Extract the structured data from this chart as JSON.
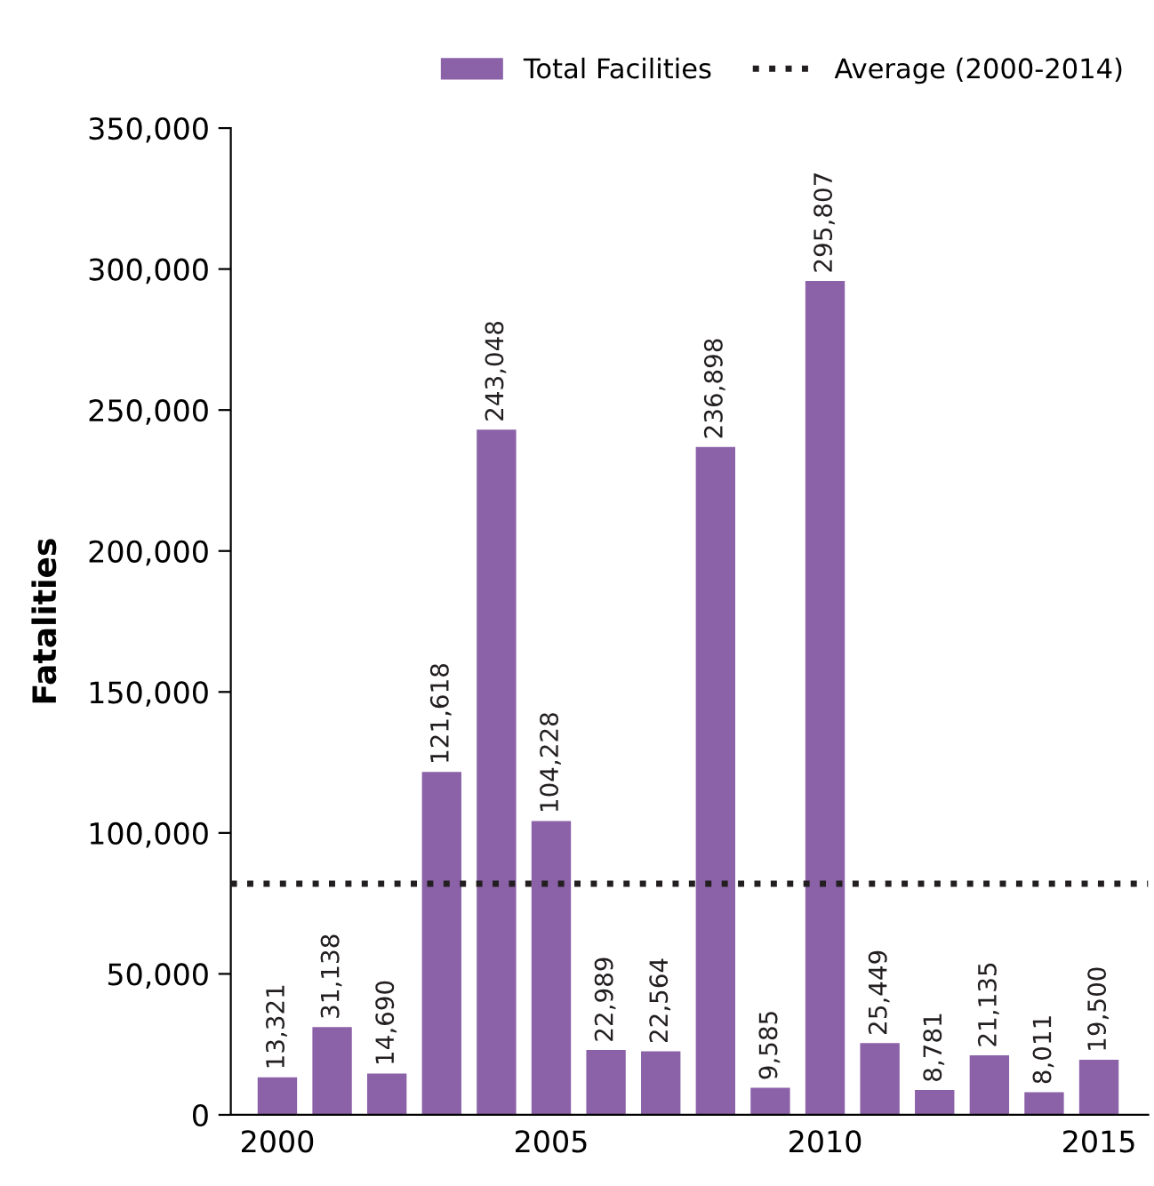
{
  "chart_data": {
    "type": "bar",
    "ylabel": "Fatalities",
    "x": [
      2000,
      2001,
      2002,
      2003,
      2004,
      2005,
      2006,
      2007,
      2008,
      2009,
      2010,
      2011,
      2012,
      2013,
      2014,
      2015
    ],
    "series": [
      {
        "name": "Total Facilities",
        "color": "#8b62a8",
        "values": [
          13321,
          31138,
          14690,
          121618,
          243048,
          104228,
          22989,
          22564,
          236898,
          9585,
          295807,
          25449,
          8781,
          21135,
          8011,
          19500
        ],
        "value_labels": [
          "13,321",
          "31,138",
          "14,690",
          "121,618",
          "243,048",
          "104,228",
          "22,989",
          "22,564",
          "236,898",
          "9,585",
          "295,807",
          "25,449",
          "8,781",
          "21,135",
          "8,011",
          "19,500"
        ]
      }
    ],
    "xlim": [
      1999.15,
      2015.9
    ],
    "xticks": [
      2000,
      2005,
      2010,
      2015
    ],
    "ylim": [
      0,
      350000
    ],
    "yticks": [
      0,
      {
        "value": 50000,
        "label": "50,000"
      },
      {
        "value": 100000,
        "label": "100,000"
      },
      {
        "value": 150000,
        "label": "150,000"
      },
      {
        "value": 200000,
        "label": "200,000"
      },
      {
        "value": 250000,
        "label": "250,000"
      },
      {
        "value": 300000,
        "label": "300,000"
      },
      {
        "value": 350000,
        "label": "350,000"
      }
    ],
    "ref_lines": [
      {
        "axis": "y",
        "value": 82000,
        "label": "Average (2000-2014)",
        "color": "#231f20",
        "line_style": "dotted"
      }
    ],
    "legend": "top right",
    "grid": false
  }
}
